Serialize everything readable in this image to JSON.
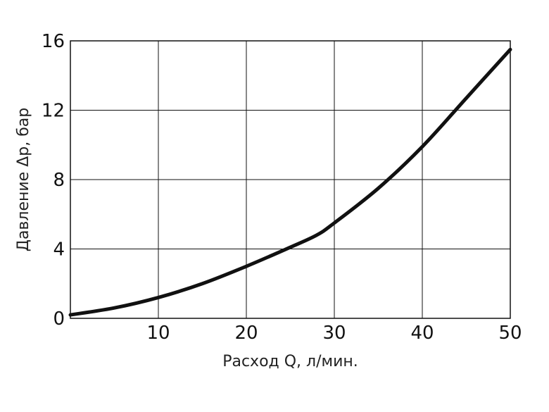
{
  "chart_data": {
    "type": "line",
    "title": "",
    "xlabel": "Расход Q, л/мин.",
    "ylabel": "Давление Δр, бар",
    "xlim": [
      0,
      50
    ],
    "ylim": [
      0,
      16
    ],
    "x_ticks": [
      "10",
      "20",
      "30",
      "40",
      "50"
    ],
    "y_ticks": [
      "0",
      "4",
      "8",
      "12",
      "16"
    ],
    "grid": true,
    "legend": "none",
    "series": [
      {
        "color": "#111111",
        "x": [
          0,
          5,
          10,
          15,
          20,
          25,
          28,
          30,
          35,
          40,
          45,
          50
        ],
        "y": [
          0.2,
          0.6,
          1.2,
          2.0,
          3.0,
          4.1,
          4.8,
          5.5,
          7.5,
          9.9,
          12.7,
          15.5
        ]
      }
    ]
  }
}
